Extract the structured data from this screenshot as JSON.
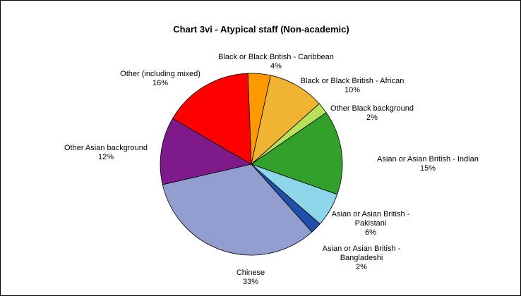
{
  "chart_data": {
    "type": "pie",
    "title": "Chart 3vi - Atypical staff (Non-academic)",
    "slices": [
      {
        "name": "Black or Black British - Caribbean",
        "value": 4,
        "value_label": "4%",
        "color": "#ff9900"
      },
      {
        "name": "Black or Black British - African",
        "value": 10,
        "value_label": "10%",
        "color": "#f0b432"
      },
      {
        "name": "Other Black background",
        "value": 2,
        "value_label": "2%",
        "color": "#b8e05a"
      },
      {
        "name": "Asian or Asian British - Indian",
        "value": 15,
        "value_label": "15%",
        "color": "#33a02c"
      },
      {
        "name": "Asian or Asian British - Pakistani",
        "value": 6,
        "value_label": "6%",
        "color": "#8dd5e8"
      },
      {
        "name": "Asian or Asian British - Bangladeshi",
        "value": 2,
        "value_label": "2%",
        "color": "#1f4fa8"
      },
      {
        "name": "Chinese",
        "value": 33,
        "value_label": "33%",
        "color": "#929ecf"
      },
      {
        "name": "Other Asian background",
        "value": 12,
        "value_label": "12%",
        "color": "#7f1a8a"
      },
      {
        "name": "Other (including mixed)",
        "value": 16,
        "value_label": "16%",
        "color": "#ff0000"
      }
    ],
    "legend": false
  }
}
